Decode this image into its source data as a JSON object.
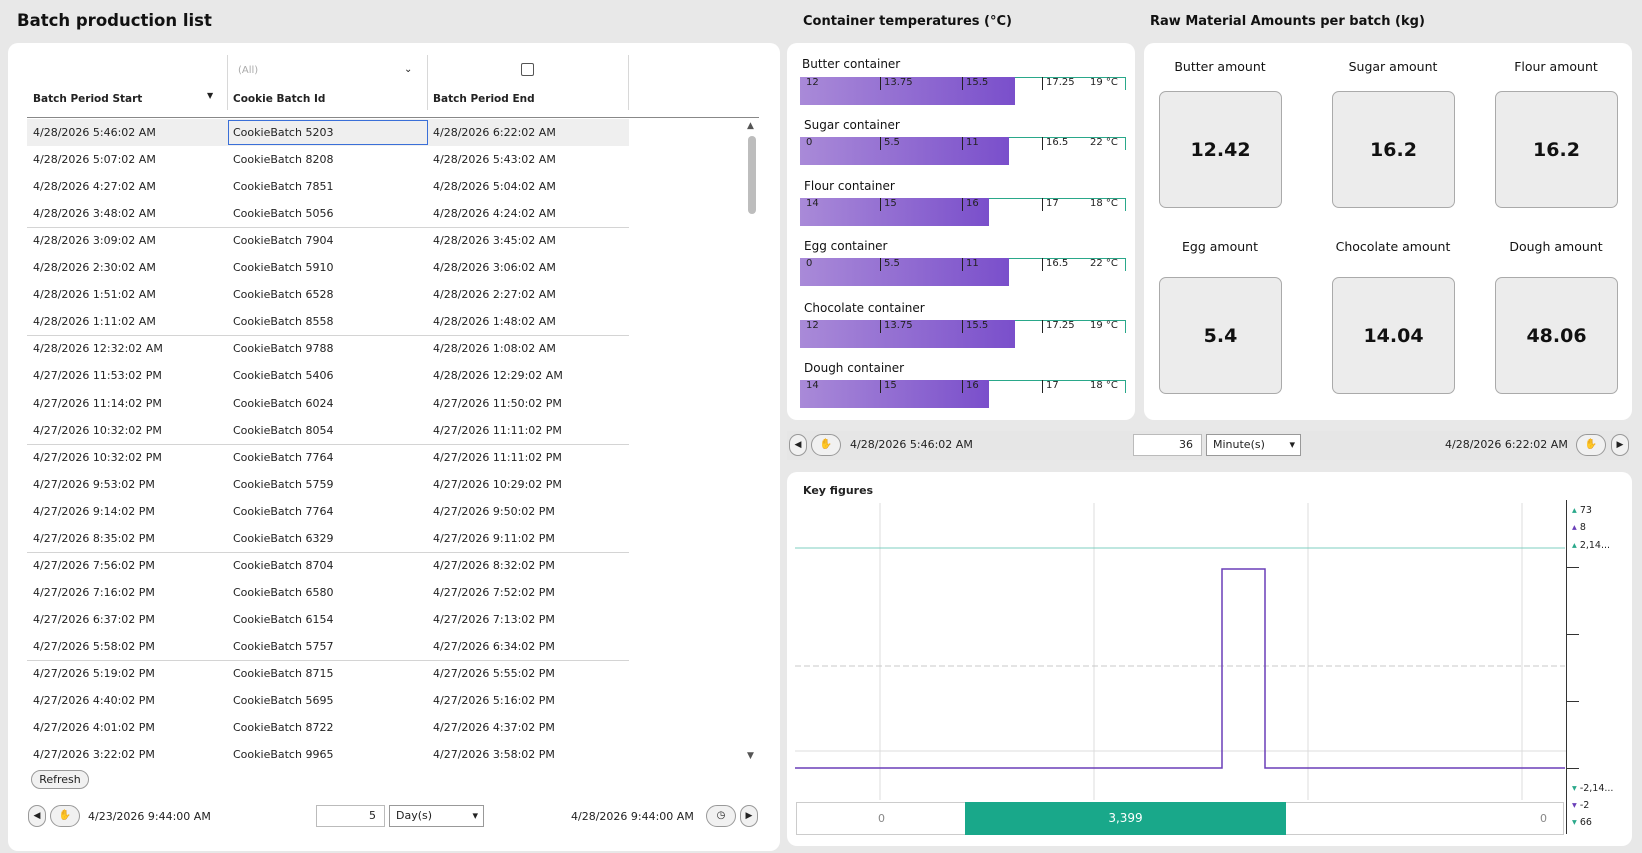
{
  "batch_list": {
    "title": "Batch production list",
    "columns": [
      "Batch Period Start",
      "Cookie Batch Id",
      "Batch Period End"
    ],
    "filter_placeholder": "(All)",
    "rows": [
      [
        "4/28/2026 5:46:02 AM",
        "CookieBatch 5203",
        "4/28/2026 6:22:02 AM"
      ],
      [
        "4/28/2026 5:07:02 AM",
        "CookieBatch 8208",
        "4/28/2026 5:43:02 AM"
      ],
      [
        "4/28/2026 4:27:02 AM",
        "CookieBatch 7851",
        "4/28/2026 5:04:02 AM"
      ],
      [
        "4/28/2026 3:48:02 AM",
        "CookieBatch 5056",
        "4/28/2026 4:24:02 AM"
      ],
      [
        "4/28/2026 3:09:02 AM",
        "CookieBatch 7904",
        "4/28/2026 3:45:02 AM"
      ],
      [
        "4/28/2026 2:30:02 AM",
        "CookieBatch 5910",
        "4/28/2026 3:06:02 AM"
      ],
      [
        "4/28/2026 1:51:02 AM",
        "CookieBatch 6528",
        "4/28/2026 2:27:02 AM"
      ],
      [
        "4/28/2026 1:11:02 AM",
        "CookieBatch 8558",
        "4/28/2026 1:48:02 AM"
      ],
      [
        "4/28/2026 12:32:02 AM",
        "CookieBatch 9788",
        "4/28/2026 1:08:02 AM"
      ],
      [
        "4/27/2026 11:53:02 PM",
        "CookieBatch 5406",
        "4/28/2026 12:29:02 AM"
      ],
      [
        "4/27/2026 11:14:02 PM",
        "CookieBatch 6024",
        "4/27/2026 11:50:02 PM"
      ],
      [
        "4/27/2026 10:32:02 PM",
        "CookieBatch 8054",
        "4/27/2026 11:11:02 PM"
      ],
      [
        "4/27/2026 10:32:02 PM",
        "CookieBatch 7764",
        "4/27/2026 11:11:02 PM"
      ],
      [
        "4/27/2026 9:53:02 PM",
        "CookieBatch 5759",
        "4/27/2026 10:29:02 PM"
      ],
      [
        "4/27/2026 9:14:02 PM",
        "CookieBatch 7764",
        "4/27/2026 9:50:02 PM"
      ],
      [
        "4/27/2026 8:35:02 PM",
        "CookieBatch 6329",
        "4/27/2026 9:11:02 PM"
      ],
      [
        "4/27/2026 7:56:02 PM",
        "CookieBatch 8704",
        "4/27/2026 8:32:02 PM"
      ],
      [
        "4/27/2026 7:16:02 PM",
        "CookieBatch 6580",
        "4/27/2026 7:52:02 PM"
      ],
      [
        "4/27/2026 6:37:02 PM",
        "CookieBatch 6154",
        "4/27/2026 7:13:02 PM"
      ],
      [
        "4/27/2026 5:58:02 PM",
        "CookieBatch 5757",
        "4/27/2026 6:34:02 PM"
      ],
      [
        "4/27/2026 5:19:02 PM",
        "CookieBatch 8715",
        "4/27/2026 5:55:02 PM"
      ],
      [
        "4/27/2026 4:40:02 PM",
        "CookieBatch 5695",
        "4/27/2026 5:16:02 PM"
      ],
      [
        "4/27/2026 4:01:02 PM",
        "CookieBatch 8722",
        "4/27/2026 4:37:02 PM"
      ],
      [
        "4/27/2026 3:22:02 PM",
        "CookieBatch 9965",
        "4/27/2026 3:58:02 PM"
      ]
    ],
    "refresh_label": "Refresh",
    "time_start": "4/23/2026 9:44:00 AM",
    "time_amount": "5",
    "time_unit": "Day(s)",
    "time_end": "4/28/2026 9:44:00 AM"
  },
  "temperatures": {
    "title": "Container temperatures (°C)",
    "containers": [
      {
        "name": "Butter container",
        "ticks": [
          "12",
          "13.75",
          "15.5",
          "17.25",
          "19 °C"
        ],
        "fill": 0.66
      },
      {
        "name": "Sugar container",
        "ticks": [
          "0",
          "5.5",
          "11",
          "16.5",
          "22 °C"
        ],
        "fill": 0.64
      },
      {
        "name": "Flour container",
        "ticks": [
          "14",
          "15",
          "16",
          "17",
          "18 °C"
        ],
        "fill": 0.58
      },
      {
        "name": "Egg container",
        "ticks": [
          "0",
          "5.5",
          "11",
          "16.5",
          "22 °C"
        ],
        "fill": 0.64
      },
      {
        "name": "Chocolate container",
        "ticks": [
          "12",
          "13.75",
          "15.5",
          "17.25",
          "19 °C"
        ],
        "fill": 0.66
      },
      {
        "name": "Dough container",
        "ticks": [
          "14",
          "15",
          "16",
          "17",
          "18 °C"
        ],
        "fill": 0.58
      }
    ],
    "time_start": "4/28/2026 5:46:02 AM",
    "time_amount": "36",
    "time_unit": "Minute(s)",
    "time_end": "4/28/2026 6:22:02 AM"
  },
  "raw_materials": {
    "title": "Raw Material Amounts per batch (kg)",
    "items": [
      {
        "label": "Butter amount",
        "value": "12.42"
      },
      {
        "label": "Sugar amount",
        "value": "16.2"
      },
      {
        "label": "Flour amount",
        "value": "16.2"
      },
      {
        "label": "Egg amount",
        "value": "5.4"
      },
      {
        "label": "Chocolate amount",
        "value": "14.04"
      },
      {
        "label": "Dough amount",
        "value": "48.06"
      }
    ]
  },
  "key_figures": {
    "title": "Key figures",
    "axis_right_top": [
      "73",
      "8",
      "2,14..."
    ],
    "axis_right_bottom": [
      "-2,14...",
      "-2",
      "66"
    ],
    "scroll_left": "0",
    "scroll_value": "3,399",
    "scroll_right": "0",
    "colors": {
      "line": "#6a3fb8",
      "teal": "#2aa88a",
      "scroll": "#19a88a"
    }
  }
}
